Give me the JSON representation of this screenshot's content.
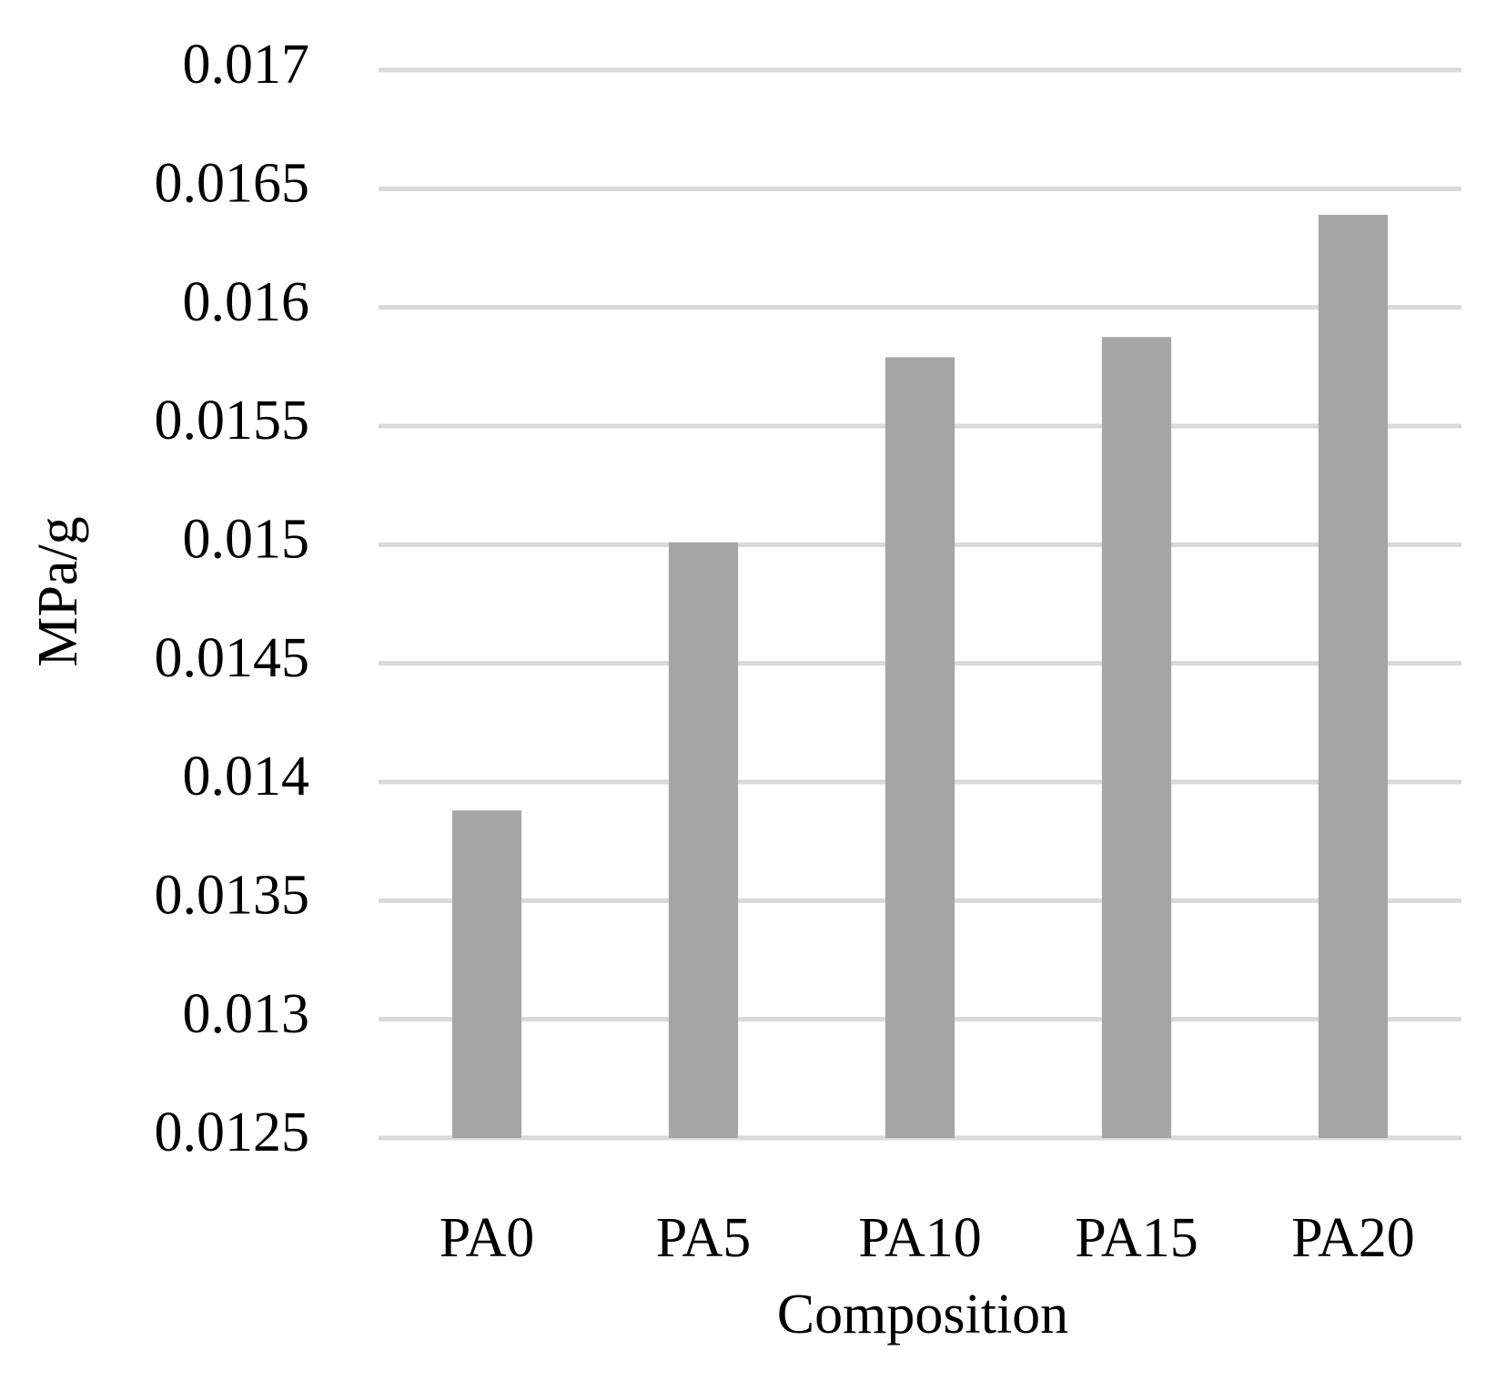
{
  "chart_data": {
    "type": "bar",
    "x_label": "Composition",
    "y_label": "MPa/g",
    "categories": [
      "PA0",
      "PA5",
      "PA10",
      "PA15",
      "PA20"
    ],
    "values": [
      0.01388,
      0.01501,
      0.01579,
      0.015875,
      0.01639
    ],
    "color": "#a5a5a5",
    "ylim": [
      0.0125,
      0.017
    ],
    "yticks": [
      0.0125,
      0.013,
      0.0135,
      0.014,
      0.0145,
      0.015,
      0.0155,
      0.016,
      0.0165,
      0.017
    ],
    "grid": true
  }
}
